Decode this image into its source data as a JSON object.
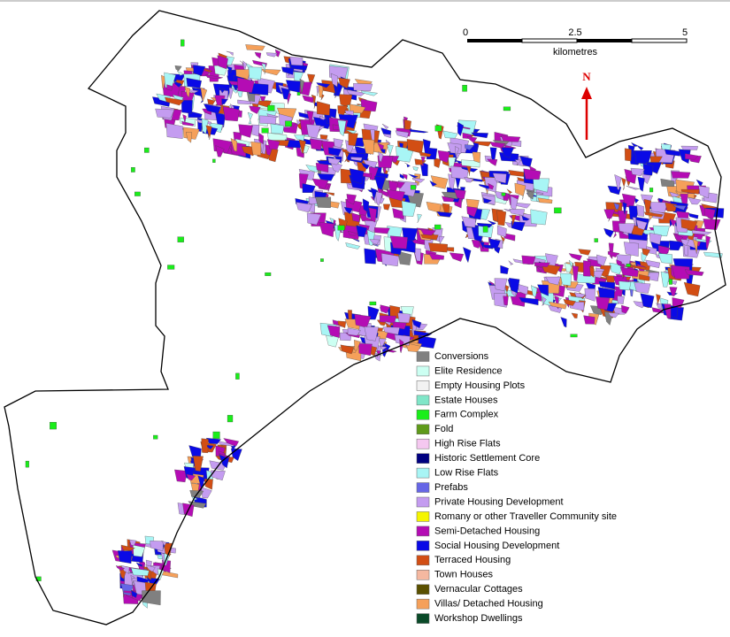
{
  "scale_bar": {
    "labels": [
      "0",
      "2.5",
      "5"
    ],
    "unit": "kilometres"
  },
  "north_arrow": {
    "label": "N"
  },
  "legend": {
    "items": [
      {
        "label": "Conversions",
        "color": "#808080"
      },
      {
        "label": "Elite Residence",
        "color": "#ccfff2"
      },
      {
        "label": "Empty Housing Plots",
        "color": "#f2f2f2"
      },
      {
        "label": "Estate Houses",
        "color": "#80e6c8"
      },
      {
        "label": "Farm Complex",
        "color": "#1aee1a"
      },
      {
        "label": "Fold",
        "color": "#5f9a1a"
      },
      {
        "label": "High Rise Flats",
        "color": "#f5c8f0"
      },
      {
        "label": "Historic Settlement Core",
        "color": "#000080"
      },
      {
        "label": "Low Rise Flats",
        "color": "#a8f5f5"
      },
      {
        "label": "Prefabs",
        "color": "#6666e6"
      },
      {
        "label": "Private Housing Development",
        "color": "#c49cf0"
      },
      {
        "label": "Romany or other Traveller Community site",
        "color": "#f5f500"
      },
      {
        "label": "Semi-Detached Housing",
        "color": "#b40cb4"
      },
      {
        "label": "Social Housing Development",
        "color": "#0a0ae6"
      },
      {
        "label": "Terraced Housing",
        "color": "#d24e14"
      },
      {
        "label": "Town Houses",
        "color": "#f5b8a0"
      },
      {
        "label": "Vernacular Cottages",
        "color": "#5a5000"
      },
      {
        "label": "Villas/ Detached Housing",
        "color": "#f5a05a"
      },
      {
        "label": "Workshop Dwellings",
        "color": "#0a4a28"
      }
    ]
  }
}
